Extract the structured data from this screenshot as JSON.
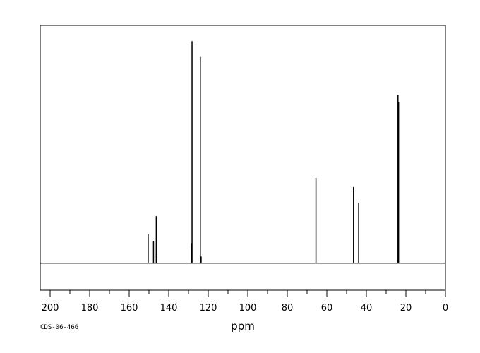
{
  "chart_data": {
    "type": "line",
    "title": "",
    "xlabel": "ppm",
    "ylabel": "",
    "xlim": [
      205,
      0
    ],
    "ylim": [
      -0.12,
      1.06
    ],
    "baseline": 0,
    "grid": false,
    "x_tick_labels": [
      "200",
      "180",
      "160",
      "140",
      "120",
      "100",
      "80",
      "60",
      "40",
      "20",
      "0"
    ],
    "x_tick_values": [
      200,
      180,
      160,
      140,
      120,
      100,
      80,
      60,
      40,
      20,
      0
    ],
    "peaks": [
      {
        "ppm": 150.4,
        "intensity": 0.13
      },
      {
        "ppm": 147.7,
        "intensity": 0.1
      },
      {
        "ppm": 146.3,
        "intensity": 0.21
      },
      {
        "ppm": 146.0,
        "intensity": 0.02
      },
      {
        "ppm": 128.2,
        "intensity": 0.99
      },
      {
        "ppm": 128.5,
        "intensity": 0.09
      },
      {
        "ppm": 124.0,
        "intensity": 0.92
      },
      {
        "ppm": 123.6,
        "intensity": 0.03
      },
      {
        "ppm": 65.5,
        "intensity": 0.38
      },
      {
        "ppm": 46.5,
        "intensity": 0.34
      },
      {
        "ppm": 43.9,
        "intensity": 0.27
      },
      {
        "ppm": 24.0,
        "intensity": 0.75
      },
      {
        "ppm": 23.7,
        "intensity": 0.72
      }
    ]
  },
  "footer": {
    "code": "CDS-06-466"
  }
}
